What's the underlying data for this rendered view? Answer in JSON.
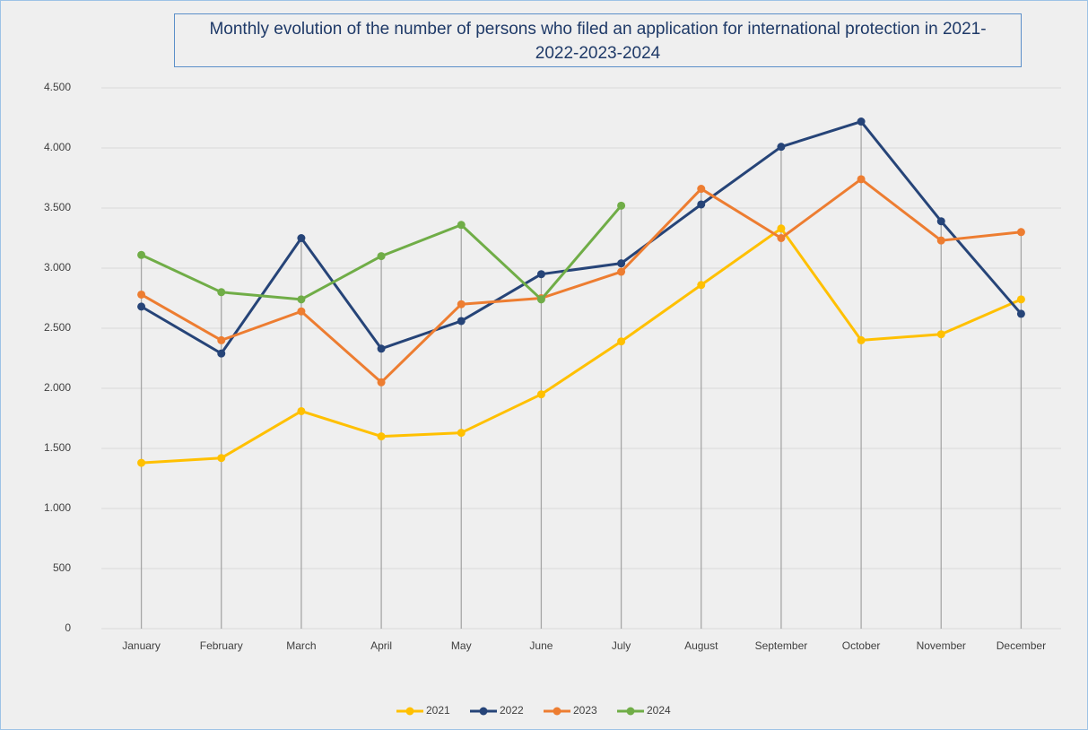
{
  "chart_data": {
    "type": "line",
    "title": "Monthly evolution of the number of persons who filed an application for international protection in 2021-2022-2023-2024",
    "categories": [
      "January",
      "February",
      "March",
      "April",
      "May",
      "June",
      "July",
      "August",
      "September",
      "October",
      "November",
      "December"
    ],
    "series": [
      {
        "name": "2021",
        "color": "#ffc000",
        "values": [
          1380,
          1420,
          1810,
          1600,
          1630,
          1950,
          2390,
          2860,
          3330,
          2400,
          2450,
          2740
        ]
      },
      {
        "name": "2022",
        "color": "#264478",
        "values": [
          2680,
          2290,
          3250,
          2330,
          2560,
          2950,
          3040,
          3530,
          4010,
          4220,
          3390,
          2620
        ]
      },
      {
        "name": "2023",
        "color": "#ed7d31",
        "values": [
          2780,
          2400,
          2640,
          2050,
          2700,
          2750,
          2970,
          3660,
          3250,
          3740,
          3230,
          3300
        ]
      },
      {
        "name": "2024",
        "color": "#70ad47",
        "values": [
          3110,
          2800,
          2740,
          3100,
          3360,
          2740,
          3520,
          null,
          null,
          null,
          null,
          null
        ]
      }
    ],
    "ylim": [
      0,
      4500
    ],
    "yticks": [
      0,
      500,
      {
        "value": 1000,
        "label": "1.000"
      },
      {
        "value": 1500,
        "label": "1.500"
      },
      {
        "value": 2000,
        "label": "2.000"
      },
      {
        "value": 2500,
        "label": "2.500"
      },
      {
        "value": 3000,
        "label": "3.000"
      },
      {
        "value": 3500,
        "label": "3.500"
      },
      {
        "value": 4000,
        "label": "4.000"
      },
      {
        "value": 4500,
        "label": "4.500"
      }
    ],
    "grid": true,
    "legend": "bottom"
  }
}
